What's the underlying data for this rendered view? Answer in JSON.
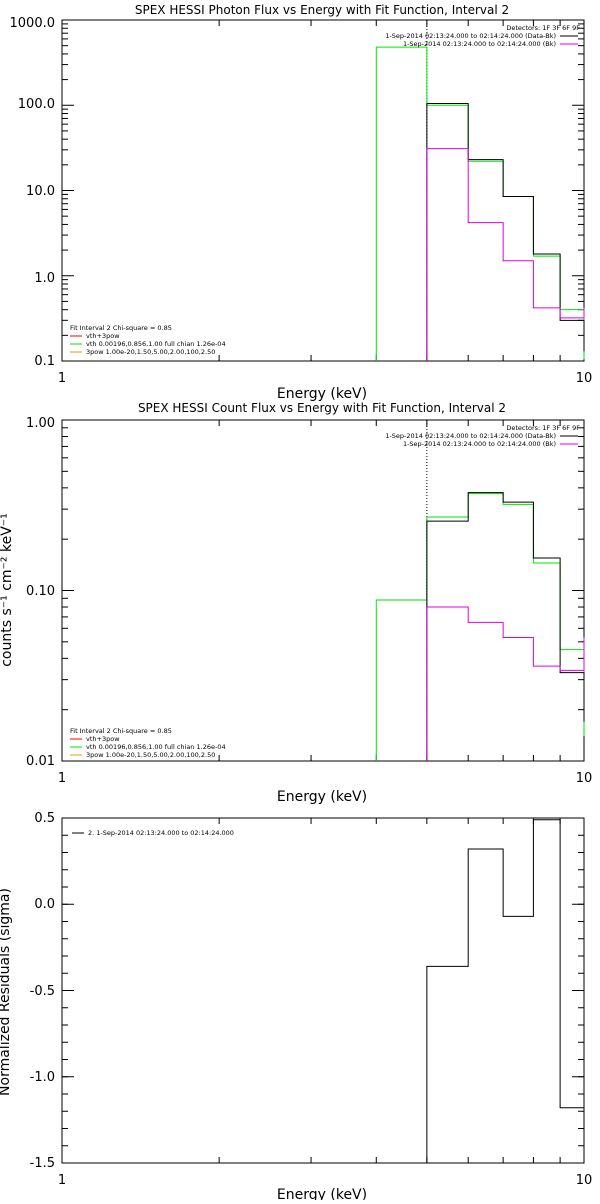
{
  "colors": {
    "black": "#000000",
    "green": "#00e600",
    "magenta": "#e000e0",
    "red": "#ff0000",
    "orange": "#e6a000"
  },
  "chart_data": [
    {
      "type": "line",
      "title": "SPEX HESSI Photon Flux vs Energy with Fit Function, Interval 2",
      "xlabel": "Energy (keV)",
      "ylabel": "",
      "xscale": "log",
      "yscale": "log",
      "xlim": [
        1,
        10
      ],
      "ylim": [
        0.1,
        1000
      ],
      "xticks": [
        "1",
        "10"
      ],
      "yticks": [
        "0.1",
        "1.0",
        "10.0",
        "100.0",
        "1000.0"
      ],
      "vline_x": 5.0,
      "header_lines": [
        "Detectors: 1F 3F 6F 9F",
        "1-Sep-2014 02:13:24.000 to 02:14:24.000 (Data-Bk)",
        "1-Sep-2014 02:13:24.000 to 02:14:24.000 (Bk)"
      ],
      "legend_lines": [
        "Fit Interval 2   Chi-square = 0.85",
        "vth+3pow",
        "vth 0.00196,0.856,1.00  full chian 1.26e-04",
        "3pow 1.00e-20,1.50,5.00,2.00,100,2.50"
      ],
      "series": [
        {
          "color": "green",
          "edges": [
            4,
            5,
            6,
            7,
            8,
            9,
            10
          ],
          "values": [
            480,
            100,
            22,
            8.5,
            1.7,
            0.4,
            0.105
          ]
        },
        {
          "color": "black",
          "edges": [
            5,
            6,
            7,
            8,
            9,
            10
          ],
          "values": [
            105,
            23,
            8.5,
            1.8,
            0.3,
            0.13
          ]
        },
        {
          "color": "magenta",
          "edges": [
            5,
            6,
            7,
            8,
            9,
            10
          ],
          "values": [
            31,
            4.2,
            1.5,
            0.42,
            0.32,
            0.42
          ]
        }
      ]
    },
    {
      "type": "line",
      "title": "SPEX HESSI Count Flux vs Energy with Fit Function, Interval 2",
      "xlabel": "Energy (keV)",
      "ylabel": "counts s⁻¹ cm⁻² keV⁻¹",
      "xscale": "log",
      "yscale": "log",
      "xlim": [
        1,
        10
      ],
      "ylim": [
        0.01,
        1.0
      ],
      "xticks": [
        "1",
        "10"
      ],
      "yticks": [
        "0.01",
        "0.10",
        "1.00"
      ],
      "vline_x": 5.0,
      "header_lines": [
        "Detectors: 1F 3F 6F 9F",
        "1-Sep-2014 02:13:24.000 to 02:14:24.000 (Data-Bk)",
        "1-Sep-2014 02:13:24.000 to 02:14:24.000 (Bk)"
      ],
      "legend_lines": [
        "Fit Interval 2   Chi-square = 0.85",
        "vth+3pow",
        "vth 0.00196,0.856,1.00  full chian 1.26e-04",
        "3pow 1.00e-20,1.50,5.00,2.00,100,2.50"
      ],
      "series": [
        {
          "color": "green",
          "edges": [
            4,
            5,
            6,
            7,
            8,
            9,
            10
          ],
          "values": [
            0.088,
            0.27,
            0.37,
            0.32,
            0.145,
            0.045,
            0.014
          ]
        },
        {
          "color": "black",
          "edges": [
            5,
            6,
            7,
            8,
            9,
            10
          ],
          "values": [
            0.255,
            0.375,
            0.33,
            0.155,
            0.033,
            0.017
          ]
        },
        {
          "color": "magenta",
          "edges": [
            5,
            6,
            7,
            8,
            9,
            10
          ],
          "values": [
            0.08,
            0.065,
            0.053,
            0.036,
            0.034,
            0.053
          ]
        }
      ]
    },
    {
      "type": "line",
      "title": "",
      "xlabel": "Energy (keV)",
      "ylabel": "Normalized Residuals (sigma)",
      "xscale": "log",
      "yscale": "linear",
      "xlim": [
        1,
        10
      ],
      "ylim": [
        -1.5,
        0.5
      ],
      "xticks": [
        "1",
        "10"
      ],
      "yticks": [
        "-1.5",
        "-1.0",
        "-0.5",
        "0.0",
        "0.5"
      ],
      "legend_lines": [
        "2.  1-Sep-2014 02:13:24.000 to 02:14:24.000"
      ],
      "series": [
        {
          "color": "black",
          "edges": [
            5,
            6,
            7,
            8,
            9,
            10
          ],
          "values": [
            -0.36,
            0.32,
            -0.07,
            0.49,
            -1.18,
            0.37
          ]
        }
      ]
    }
  ]
}
